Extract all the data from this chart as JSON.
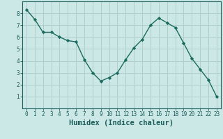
{
  "x": [
    0,
    1,
    2,
    3,
    4,
    5,
    6,
    7,
    8,
    9,
    10,
    11,
    12,
    13,
    14,
    15,
    16,
    17,
    18,
    19,
    20,
    21,
    22,
    23
  ],
  "y": [
    8.3,
    7.5,
    6.4,
    6.4,
    6.0,
    5.7,
    5.6,
    4.1,
    3.0,
    2.3,
    2.6,
    3.0,
    4.1,
    5.1,
    5.8,
    7.0,
    7.6,
    7.2,
    6.8,
    5.5,
    4.2,
    3.3,
    2.4,
    1.0
  ],
  "line_color": "#1a6b5e",
  "marker": "D",
  "marker_size": 2.2,
  "bg_color": "#cce8e6",
  "grid_color": "#b0cece",
  "xlabel": "Humidex (Indice chaleur)",
  "xlim": [
    -0.5,
    23.5
  ],
  "ylim": [
    0,
    9
  ],
  "xtick_labels": [
    "0",
    "1",
    "2",
    "3",
    "4",
    "5",
    "6",
    "7",
    "8",
    "9",
    "10",
    "11",
    "12",
    "13",
    "14",
    "15",
    "16",
    "17",
    "18",
    "19",
    "20",
    "21",
    "22",
    "23"
  ],
  "ytick_values": [
    1,
    2,
    3,
    4,
    5,
    6,
    7,
    8
  ],
  "font_color": "#1a5c5a",
  "tick_fontsize": 5.5,
  "label_fontsize": 7.5
}
